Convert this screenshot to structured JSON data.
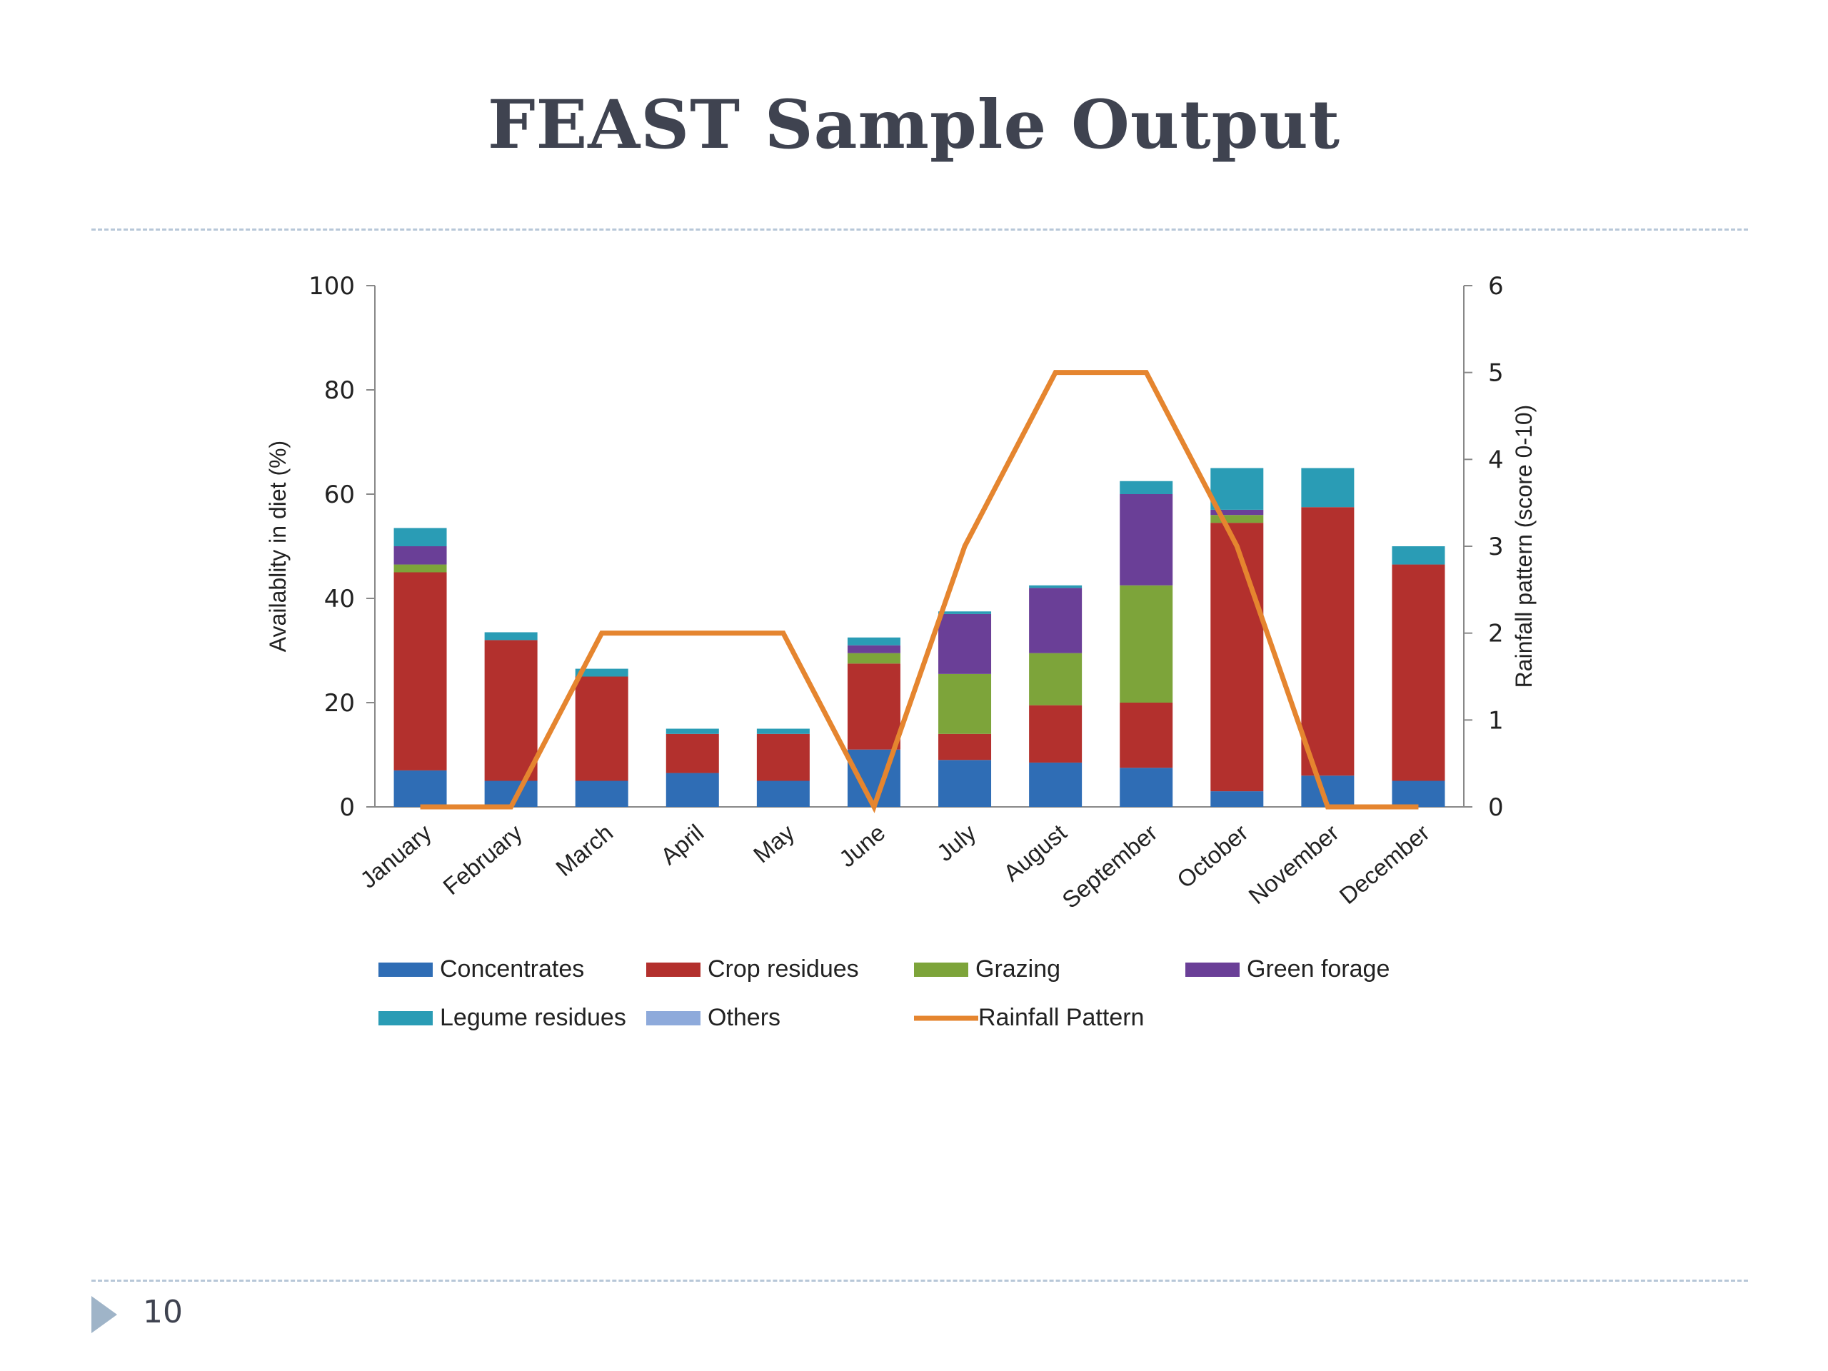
{
  "slide": {
    "title": "FEAST Sample Output",
    "page_number": "10"
  },
  "chart_data": {
    "type": "bar",
    "stacked": true,
    "categories": [
      "January",
      "February",
      "March",
      "April",
      "May",
      "June",
      "July",
      "August",
      "September",
      "October",
      "November",
      "December"
    ],
    "series": [
      {
        "name": "Concentrates",
        "color": "#2f6db5",
        "values": [
          7,
          5,
          5,
          6.5,
          5,
          11,
          9,
          8.5,
          7.5,
          3,
          6,
          5
        ]
      },
      {
        "name": "Crop residues",
        "color": "#b3302d",
        "values": [
          38,
          27,
          20,
          7.5,
          9,
          16.5,
          5,
          11,
          12.5,
          51.5,
          51.5,
          41.5
        ]
      },
      {
        "name": "Grazing",
        "color": "#7da43a",
        "values": [
          1.5,
          0,
          0,
          0,
          0,
          2,
          11.5,
          10,
          22.5,
          1.5,
          0,
          0
        ]
      },
      {
        "name": "Green forage",
        "color": "#6a3f97",
        "values": [
          3.5,
          0,
          0,
          0,
          0,
          1.5,
          11.5,
          12.5,
          17.5,
          1,
          0,
          0
        ]
      },
      {
        "name": "Legume residues",
        "color": "#2a9cb5",
        "values": [
          3.5,
          1.5,
          1.5,
          1,
          1,
          1.5,
          0.5,
          0.5,
          2.5,
          8,
          7.5,
          3.5
        ]
      },
      {
        "name": "Others",
        "color": "#8eaadb",
        "values": [
          0,
          0,
          0,
          0,
          0,
          0,
          0,
          0,
          0,
          0,
          0,
          0
        ]
      }
    ],
    "line_series": {
      "name": "Rainfall Pattern",
      "color": "#e5852f",
      "axis": "right",
      "values": [
        0,
        0,
        2,
        2,
        2,
        0,
        3,
        5,
        5,
        3,
        0,
        0
      ]
    },
    "ylabel": "Availablity in diet (%)",
    "ylabel_right": "Rainfall  pattern (score 0-10)",
    "ylim": [
      0,
      100
    ],
    "yticks": [
      "0",
      "20",
      "40",
      "60",
      "80",
      "100"
    ],
    "ylim_right": [
      0,
      6
    ],
    "yticks_right": [
      "0",
      "1",
      "2",
      "3",
      "4",
      "5",
      "6"
    ],
    "grid": false,
    "legend_position": "bottom"
  }
}
